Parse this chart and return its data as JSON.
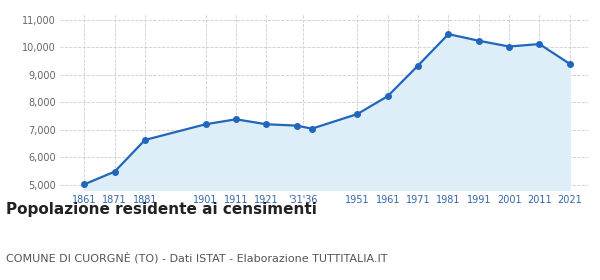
{
  "years": [
    1861,
    1871,
    1881,
    1901,
    1911,
    1921,
    1931,
    1936,
    1951,
    1961,
    1971,
    1981,
    1991,
    2001,
    2011,
    2021
  ],
  "population": [
    5020,
    5480,
    6630,
    7200,
    7380,
    7200,
    7150,
    7040,
    7570,
    8220,
    9330,
    10470,
    10230,
    10020,
    10110,
    9390
  ],
  "tick_labels": [
    "1861",
    "1871",
    "1881",
    "1901",
    "1911",
    "1921",
    "'31'36",
    "1951",
    "1961",
    "1971",
    "1981",
    "1991",
    "2001",
    "2011",
    "2021"
  ],
  "tick_positions": [
    1861,
    1871,
    1881,
    1901,
    1911,
    1921,
    1933,
    1951,
    1961,
    1971,
    1981,
    1991,
    2001,
    2011,
    2021
  ],
  "line_color": "#2266bb",
  "fill_color": "#ddeef8",
  "marker_color": "#2266bb",
  "grid_color": "#cccccc",
  "bg_color": "#ffffff",
  "ylim": [
    4800,
    11200
  ],
  "yticks": [
    5000,
    6000,
    7000,
    8000,
    9000,
    10000,
    11000
  ],
  "ytick_labels": [
    "5,000",
    "6,000",
    "7,000",
    "8,000",
    "9,000",
    "10,000",
    "11,000"
  ],
  "title": "Popolazione residente ai censimenti",
  "subtitle": "COMUNE DI CUORGNÈ (TO) - Dati ISTAT - Elaborazione TUTTITALIA.IT",
  "title_fontsize": 11,
  "subtitle_fontsize": 8,
  "tick_label_color": "#3366aa",
  "ytick_color": "#666666"
}
